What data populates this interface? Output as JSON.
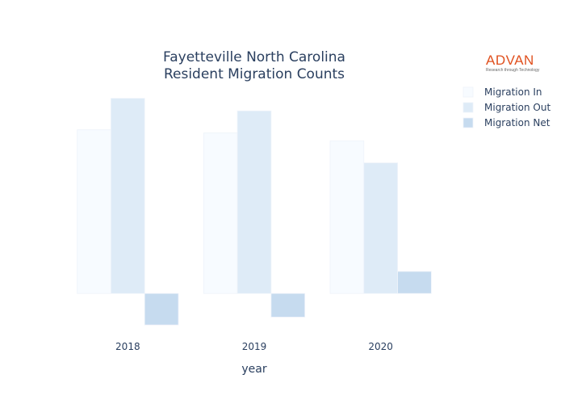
{
  "chart_data": {
    "type": "bar",
    "title_lines": [
      "Fayetteville North Carolina",
      "Resident Migration Counts"
    ],
    "xlabel": "year",
    "ylabel": "",
    "categories": [
      "2018",
      "2019",
      "2020"
    ],
    "series": [
      {
        "name": "Migration In",
        "color": "#f7fbff",
        "values": [
          5200,
          5100,
          4850
        ]
      },
      {
        "name": "Migration Out",
        "color": "#deebf7",
        "values": [
          6200,
          5800,
          4150
        ]
      },
      {
        "name": "Migration Net",
        "color": "#c6dbef",
        "values": [
          -1000,
          -750,
          700
        ]
      }
    ],
    "ylim": [
      -1150,
      6500
    ],
    "y_gridlines": false,
    "y_tick_labels": false,
    "legend_position": "top-right"
  },
  "logo": {
    "text": "ADVAN",
    "tagline": "Research through Technology",
    "color": "#e0501e"
  }
}
